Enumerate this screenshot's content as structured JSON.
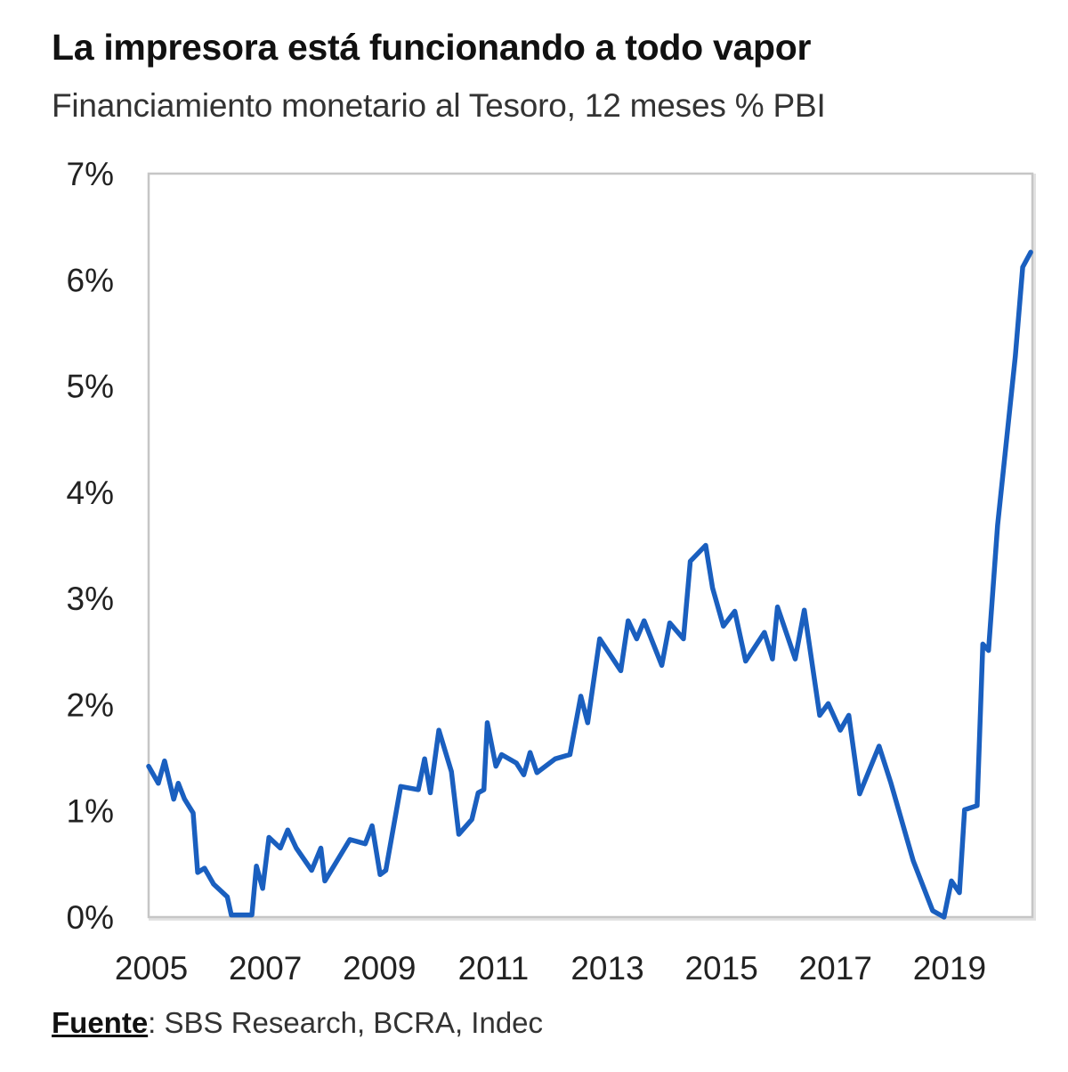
{
  "chart_data": {
    "type": "line",
    "title": "La impresora está funcionando a todo vapor",
    "subtitle": "Financiamiento monetario al Tesoro, 12 meses % PBI",
    "xlabel": "",
    "ylabel": "",
    "xlim": [
      2005,
      2020.5
    ],
    "ylim": [
      0,
      7
    ],
    "x_ticks": [
      "2005",
      "2007",
      "2009",
      "2011",
      "2013",
      "2015",
      "2017",
      "2019"
    ],
    "y_ticks": [
      "0%",
      "1%",
      "2%",
      "3%",
      "4%",
      "5%",
      "6%",
      "7%"
    ],
    "grid": false,
    "legend": "none",
    "line_color": "#1a5fbf",
    "series": [
      {
        "x": [
          2005.0,
          2005.17,
          2005.28,
          2005.44,
          2005.52,
          2005.63,
          2005.78,
          2005.86,
          2005.98,
          2006.14,
          2006.38,
          2006.45,
          2006.81,
          2006.89,
          2007.0,
          2007.11,
          2007.31,
          2007.44,
          2007.59,
          2007.86,
          2008.02,
          2008.09,
          2008.53,
          2008.8,
          2008.92,
          2009.06,
          2009.16,
          2009.42,
          2009.73,
          2009.84,
          2009.94,
          2010.09,
          2010.31,
          2010.44,
          2010.67,
          2010.78,
          2010.88,
          2010.94,
          2011.09,
          2011.19,
          2011.45,
          2011.58,
          2011.69,
          2011.81,
          2012.13,
          2012.39,
          2012.58,
          2012.7,
          2012.91,
          2013.28,
          2013.41,
          2013.56,
          2013.69,
          2014.0,
          2014.14,
          2014.38,
          2014.5,
          2014.77,
          2014.89,
          2015.08,
          2015.28,
          2015.47,
          2015.8,
          2015.94,
          2016.03,
          2016.34,
          2016.5,
          2016.77,
          2016.92,
          2017.13,
          2017.28,
          2017.47,
          2017.81,
          2018.02,
          2018.41,
          2018.75,
          2018.95,
          2019.08,
          2019.22,
          2019.31,
          2019.53,
          2019.63,
          2019.73,
          2019.89,
          2020.2,
          2020.33,
          2020.47
        ],
        "values": [
          1.42,
          1.26,
          1.47,
          1.11,
          1.26,
          1.11,
          0.98,
          0.42,
          0.46,
          0.31,
          0.19,
          0.02,
          0.02,
          0.48,
          0.27,
          0.75,
          0.65,
          0.82,
          0.65,
          0.44,
          0.65,
          0.34,
          0.73,
          0.69,
          0.86,
          0.4,
          0.44,
          1.23,
          1.2,
          1.49,
          1.17,
          1.76,
          1.37,
          0.78,
          0.92,
          1.17,
          1.2,
          1.83,
          1.42,
          1.53,
          1.45,
          1.34,
          1.55,
          1.36,
          1.49,
          1.53,
          2.08,
          1.83,
          2.62,
          2.32,
          2.79,
          2.62,
          2.79,
          2.37,
          2.77,
          2.62,
          3.35,
          3.5,
          3.1,
          2.74,
          2.88,
          2.41,
          2.68,
          2.43,
          2.92,
          2.43,
          2.89,
          1.9,
          2.01,
          1.76,
          1.9,
          1.16,
          1.61,
          1.26,
          0.53,
          0.06,
          0.0,
          0.34,
          0.23,
          1.01,
          1.05,
          2.57,
          2.51,
          3.69,
          5.28,
          6.12,
          6.26
        ]
      }
    ]
  },
  "source": {
    "label": "Fuente",
    "text": ": SBS Research, BCRA, Indec"
  }
}
